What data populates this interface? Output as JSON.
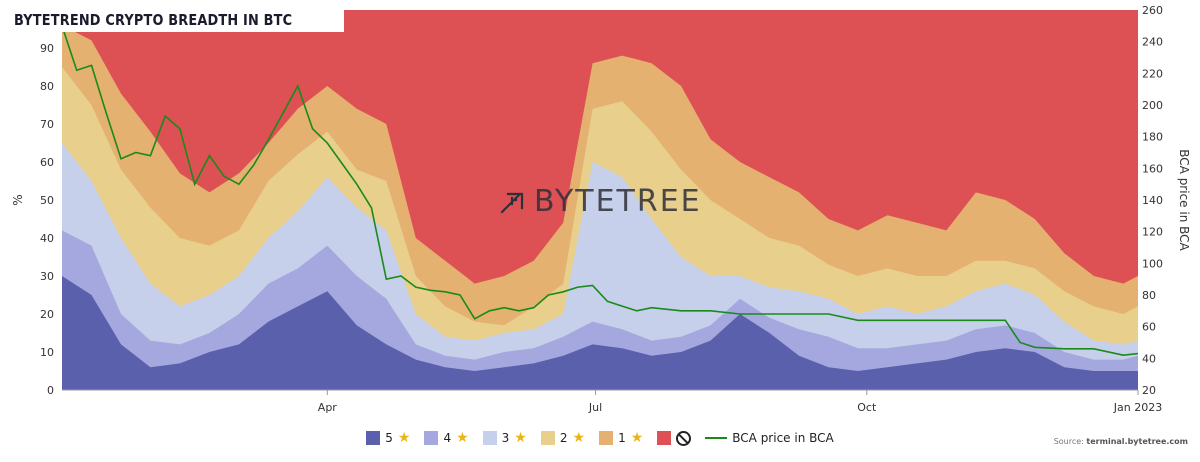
{
  "title": "BYTETREND CRYPTO BREADTH IN BTC",
  "watermark": "BYTETREE",
  "source_label": "Source:",
  "source_site": "terminal.bytetree.com",
  "colors": {
    "five_star": "#5b60ad",
    "four_star": "#a4a8df",
    "three_star": "#c6d0ea",
    "two_star": "#e8cf8c",
    "one_star": "#e4b171",
    "no_star": "#dd5154",
    "price_line": "#1a8a1a",
    "star": "#e8b516"
  },
  "legend": [
    {
      "label": "5",
      "icon": "star-icon",
      "color": "#5b60ad"
    },
    {
      "label": "4",
      "icon": "star-icon",
      "color": "#a4a8df"
    },
    {
      "label": "3",
      "icon": "star-icon",
      "color": "#c6d0ea"
    },
    {
      "label": "2",
      "icon": "star-icon",
      "color": "#e8cf8c"
    },
    {
      "label": "1",
      "icon": "star-icon",
      "color": "#e4b171"
    },
    {
      "label": "",
      "icon": "no-entry-icon",
      "color": "#dd5154"
    },
    {
      "label": "BCA price in BCA",
      "icon": "line",
      "color": "#1a8a1a"
    }
  ],
  "chart_data": {
    "type": "area",
    "stacked": true,
    "xlabel": "",
    "ylabel": "%",
    "ylabel_right": "BCA price in BCA",
    "x_ticks": [
      "Apr",
      "Jul",
      "Oct",
      "Jan 2023"
    ],
    "x_tick_days": [
      90,
      181,
      273,
      365
    ],
    "x_range_days": [
      0,
      365
    ],
    "ylim": [
      0,
      100
    ],
    "y_ticks": [
      0,
      10,
      20,
      30,
      40,
      50,
      60,
      70,
      80,
      90
    ],
    "y2lim": [
      20,
      260
    ],
    "y2_ticks": [
      20,
      40,
      60,
      80,
      100,
      120,
      140,
      160,
      180,
      200,
      220,
      240,
      260
    ],
    "x_days": [
      0,
      10,
      20,
      30,
      40,
      50,
      60,
      70,
      80,
      90,
      100,
      110,
      120,
      130,
      140,
      150,
      160,
      170,
      180,
      190,
      200,
      210,
      220,
      230,
      240,
      250,
      260,
      270,
      280,
      290,
      300,
      310,
      320,
      330,
      340,
      350,
      360,
      365
    ],
    "cumulative_upper_bounds_percent": {
      "five_star": [
        30,
        25,
        12,
        6,
        7,
        10,
        12,
        18,
        22,
        26,
        17,
        12,
        8,
        6,
        5,
        6,
        7,
        9,
        12,
        11,
        9,
        10,
        13,
        20,
        15,
        9,
        6,
        5,
        6,
        7,
        8,
        10,
        11,
        10,
        6,
        5,
        5,
        5
      ],
      "four_star": [
        42,
        38,
        20,
        13,
        12,
        15,
        20,
        28,
        32,
        38,
        30,
        24,
        12,
        9,
        8,
        10,
        11,
        14,
        18,
        16,
        13,
        14,
        17,
        24,
        19,
        16,
        14,
        11,
        11,
        12,
        13,
        16,
        17,
        15,
        10,
        8,
        8,
        9
      ],
      "three_star": [
        65,
        55,
        40,
        28,
        22,
        25,
        30,
        40,
        47,
        56,
        48,
        42,
        20,
        14,
        13,
        15,
        16,
        20,
        60,
        56,
        45,
        35,
        30,
        30,
        27,
        26,
        24,
        20,
        22,
        20,
        22,
        26,
        28,
        25,
        18,
        13,
        12,
        13
      ],
      "two_star": [
        85,
        75,
        58,
        48,
        40,
        38,
        42,
        55,
        62,
        68,
        58,
        55,
        30,
        22,
        18,
        17,
        22,
        28,
        74,
        76,
        68,
        58,
        50,
        45,
        40,
        38,
        33,
        30,
        32,
        30,
        30,
        34,
        34,
        32,
        26,
        22,
        20,
        22
      ],
      "one_star": [
        96,
        92,
        78,
        68,
        57,
        52,
        57,
        65,
        74,
        80,
        74,
        70,
        40,
        34,
        28,
        30,
        34,
        44,
        86,
        88,
        86,
        80,
        66,
        60,
        56,
        52,
        45,
        42,
        46,
        44,
        42,
        52,
        50,
        45,
        36,
        30,
        28,
        30
      ],
      "no_star": [
        100,
        100,
        100,
        100,
        100,
        100,
        100,
        100,
        100,
        100,
        100,
        100,
        100,
        100,
        100,
        100,
        100,
        100,
        100,
        100,
        100,
        100,
        100,
        100,
        100,
        100,
        100,
        100,
        100,
        100,
        100,
        100,
        100,
        100,
        100,
        100,
        100,
        100
      ]
    },
    "series": [
      {
        "name": "BCA price in BCA",
        "axis": "right",
        "x_days": [
          0,
          5,
          10,
          15,
          20,
          25,
          30,
          35,
          40,
          45,
          50,
          55,
          60,
          65,
          70,
          75,
          80,
          85,
          90,
          95,
          100,
          105,
          110,
          115,
          120,
          125,
          130,
          135,
          140,
          145,
          150,
          155,
          160,
          165,
          170,
          175,
          180,
          185,
          190,
          195,
          200,
          210,
          220,
          230,
          240,
          250,
          260,
          270,
          280,
          290,
          300,
          310,
          320,
          325,
          330,
          340,
          350,
          360,
          365
        ],
        "values": [
          250,
          222,
          225,
          195,
          166,
          170,
          168,
          193,
          185,
          150,
          168,
          155,
          150,
          162,
          178,
          195,
          212,
          185,
          176,
          163,
          150,
          135,
          90,
          92,
          85,
          83,
          82,
          80,
          65,
          70,
          72,
          70,
          72,
          80,
          82,
          85,
          86,
          76,
          73,
          70,
          72,
          70,
          70,
          68,
          68,
          68,
          68,
          64,
          64,
          64,
          64,
          64,
          64,
          50,
          47,
          46,
          46,
          42,
          43
        ]
      }
    ]
  }
}
